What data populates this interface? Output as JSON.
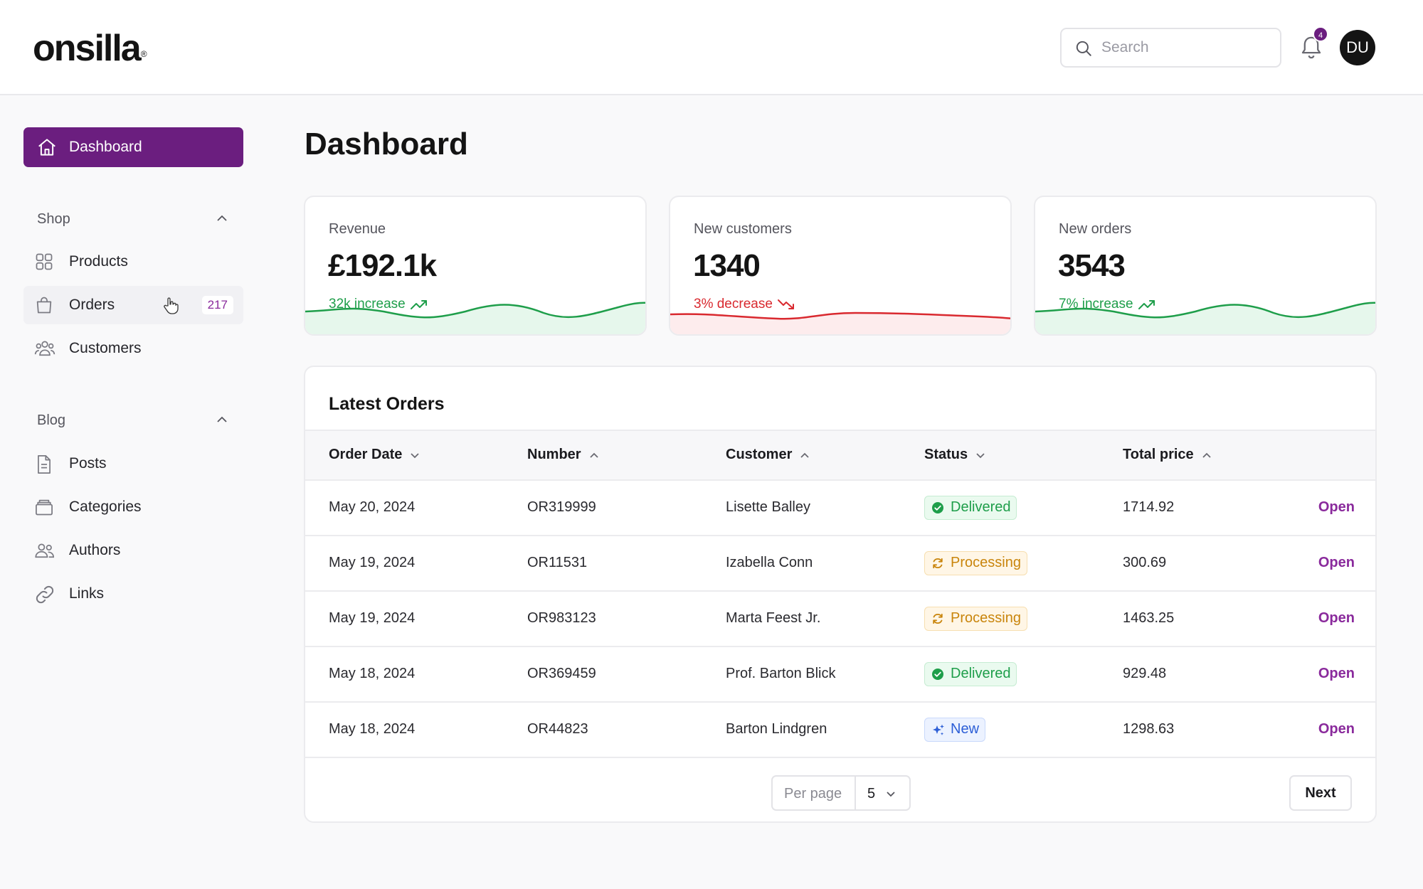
{
  "brand": {
    "logo_text": "onsilla",
    "logo_mark": "®"
  },
  "header": {
    "search_placeholder": "Search",
    "notification_count": "4",
    "avatar_initials": "DU"
  },
  "sidebar": {
    "active": {
      "label": "Dashboard",
      "icon": "home-icon"
    },
    "groups": [
      {
        "title": "Shop",
        "items": [
          {
            "label": "Products",
            "icon": "grid-icon"
          },
          {
            "label": "Orders",
            "icon": "shopping-bag-icon",
            "count": "217"
          },
          {
            "label": "Customers",
            "icon": "users-icon"
          }
        ]
      },
      {
        "title": "Blog",
        "items": [
          {
            "label": "Posts",
            "icon": "document-icon"
          },
          {
            "label": "Categories",
            "icon": "folders-icon"
          },
          {
            "label": "Authors",
            "icon": "user-group-icon"
          },
          {
            "label": "Links",
            "icon": "link-icon"
          }
        ]
      }
    ]
  },
  "main": {
    "title": "Dashboard",
    "stats": [
      {
        "label": "Revenue",
        "value": "£192.1k",
        "trend": "32k increase",
        "direction": "up"
      },
      {
        "label": "New customers",
        "value": "1340",
        "trend": "3% decrease",
        "direction": "down"
      },
      {
        "label": "New orders",
        "value": "3543",
        "trend": "7% increase",
        "direction": "up"
      }
    ],
    "orders": {
      "title": "Latest Orders",
      "columns": [
        "Order Date",
        "Number",
        "Customer",
        "Status",
        "Total price"
      ],
      "rows": [
        {
          "date": "May 20, 2024",
          "number": "OR319999",
          "customer": "Lisette Balley",
          "status": "Delivered",
          "total": "1714.92",
          "action": "Open"
        },
        {
          "date": "May 19, 2024",
          "number": "OR11531",
          "customer": "Izabella Conn",
          "status": "Processing",
          "total": "300.69",
          "action": "Open"
        },
        {
          "date": "May 19, 2024",
          "number": "OR983123",
          "customer": "Marta Feest Jr.",
          "status": "Processing",
          "total": "1463.25",
          "action": "Open"
        },
        {
          "date": "May 18, 2024",
          "number": "OR369459",
          "customer": "Prof. Barton Blick",
          "status": "Delivered",
          "total": "929.48",
          "action": "Open"
        },
        {
          "date": "May 18, 2024",
          "number": "OR44823",
          "customer": "Barton Lindgren",
          "status": "New",
          "total": "1298.63",
          "action": "Open"
        }
      ],
      "pagination": {
        "per_page_label": "Per page",
        "per_page_value": "5",
        "next_label": "Next"
      }
    }
  },
  "colors": {
    "accent": "#6b1e7f",
    "accent_text": "#8a2a9c",
    "success": "#1e9e4a",
    "danger": "#d9292f",
    "warning": "#c9850c",
    "info": "#2c5ed6"
  }
}
